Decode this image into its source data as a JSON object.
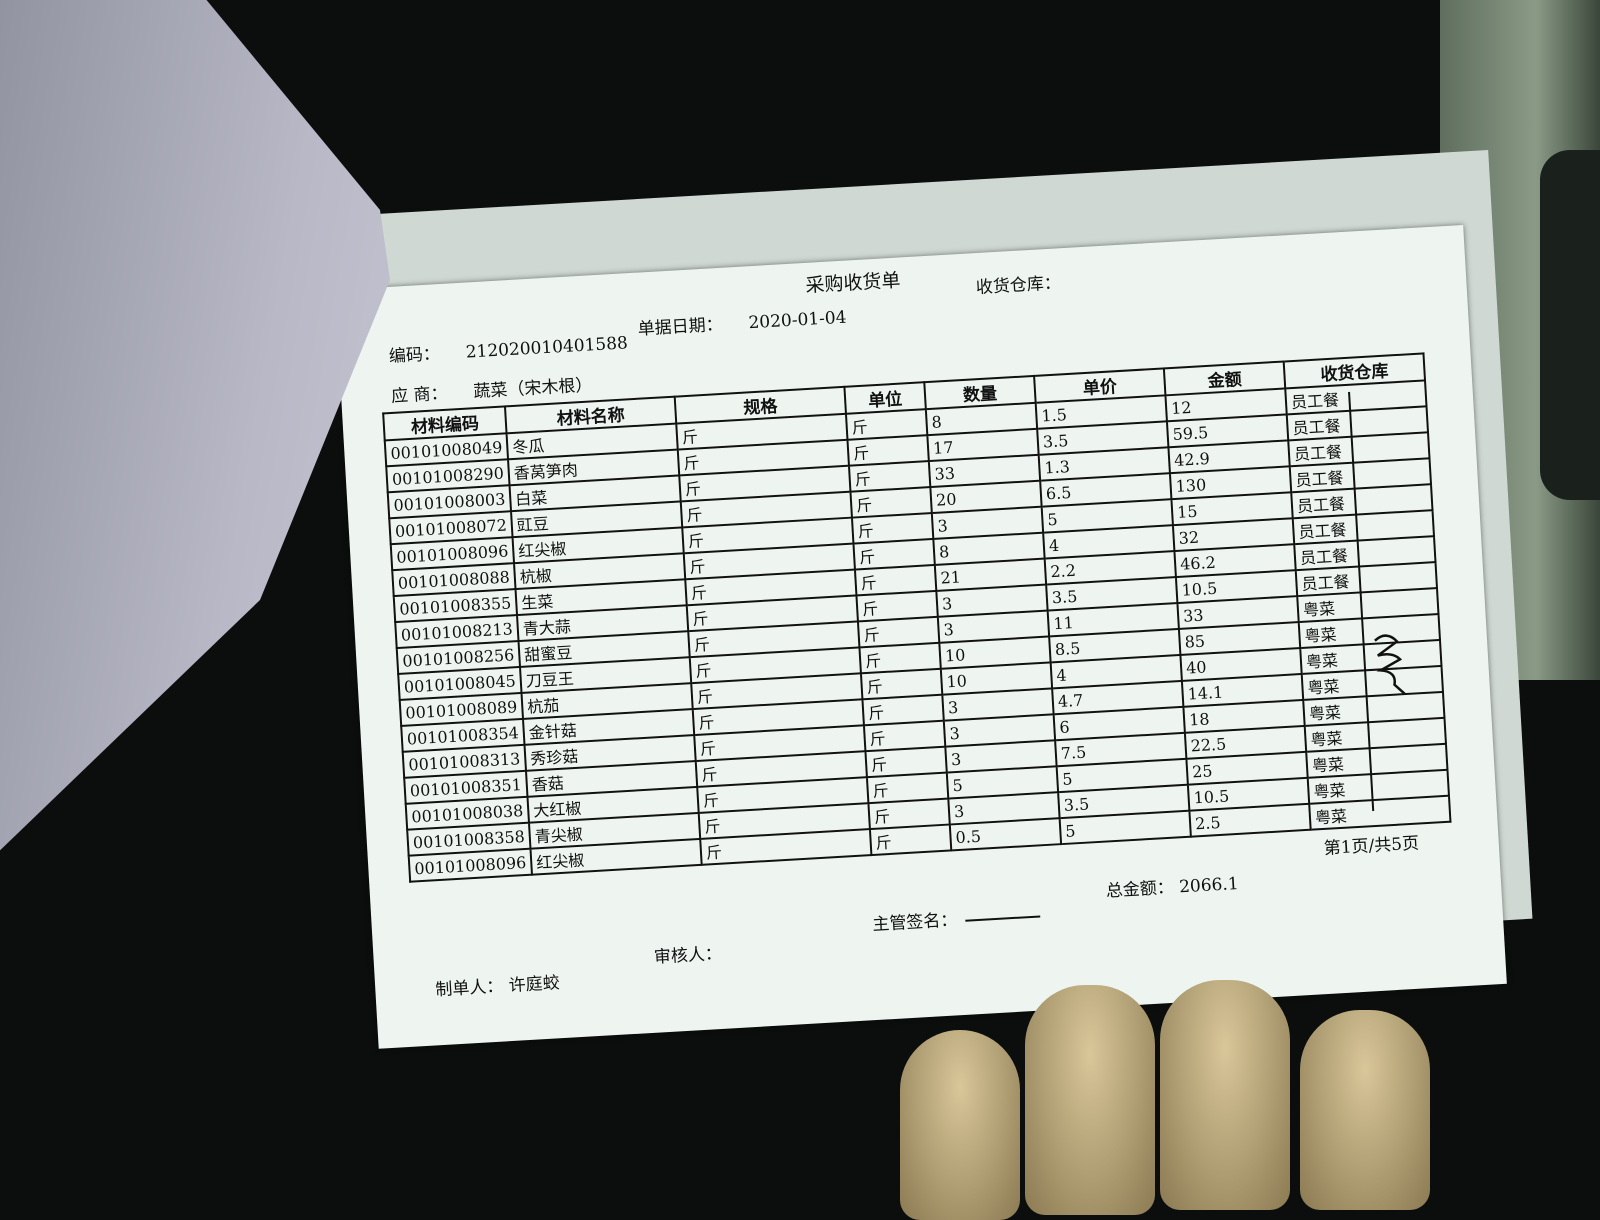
{
  "document": {
    "title": "采购收货单",
    "warehouse_label": "收货仓库：",
    "code_label": "编码：",
    "code_value": "212020010401588",
    "date_label": "单据日期：",
    "date_value": "2020-01-04",
    "supplier_label": "应 商：",
    "supplier_value": "蔬菜（宋木根）",
    "columns": [
      "材料编码",
      "材料名称",
      "规格",
      "单位",
      "数量",
      "单价",
      "金额",
      "收货仓库"
    ],
    "rows": [
      [
        "00101008049",
        "冬瓜",
        "斤",
        "斤",
        "8",
        "1.5",
        "12",
        "员工餐"
      ],
      [
        "00101008290",
        "香莴笋肉",
        "斤",
        "斤",
        "17",
        "3.5",
        "59.5",
        "员工餐"
      ],
      [
        "00101008003",
        "白菜",
        "斤",
        "斤",
        "33",
        "1.3",
        "42.9",
        "员工餐"
      ],
      [
        "00101008072",
        "豇豆",
        "斤",
        "斤",
        "20",
        "6.5",
        "130",
        "员工餐"
      ],
      [
        "00101008096",
        "红尖椒",
        "斤",
        "斤",
        "3",
        "5",
        "15",
        "员工餐"
      ],
      [
        "00101008088",
        "杭椒",
        "斤",
        "斤",
        "8",
        "4",
        "32",
        "员工餐"
      ],
      [
        "00101008355",
        "生菜",
        "斤",
        "斤",
        "21",
        "2.2",
        "46.2",
        "员工餐"
      ],
      [
        "00101008213",
        "青大蒜",
        "斤",
        "斤",
        "3",
        "3.5",
        "10.5",
        "员工餐"
      ],
      [
        "00101008256",
        "甜蜜豆",
        "斤",
        "斤",
        "3",
        "11",
        "33",
        "粤菜"
      ],
      [
        "00101008045",
        "刀豆王",
        "斤",
        "斤",
        "10",
        "8.5",
        "85",
        "粤菜"
      ],
      [
        "00101008089",
        "杭茄",
        "斤",
        "斤",
        "10",
        "4",
        "40",
        "粤菜"
      ],
      [
        "00101008354",
        "金针菇",
        "斤",
        "斤",
        "3",
        "4.7",
        "14.1",
        "粤菜"
      ],
      [
        "00101008313",
        "秀珍菇",
        "斤",
        "斤",
        "3",
        "6",
        "18",
        "粤菜"
      ],
      [
        "00101008351",
        "香菇",
        "斤",
        "斤",
        "3",
        "7.5",
        "22.5",
        "粤菜"
      ],
      [
        "00101008038",
        "大红椒",
        "斤",
        "斤",
        "5",
        "5",
        "25",
        "粤菜"
      ],
      [
        "00101008358",
        "青尖椒",
        "斤",
        "斤",
        "3",
        "3.5",
        "10.5",
        "粤菜"
      ],
      [
        "00101008096",
        "红尖椒",
        "斤",
        "斤",
        "0.5",
        "5",
        "2.5",
        "粤菜"
      ]
    ],
    "supervisor_label": "主管签名：",
    "total_label": "总金额：",
    "total_value": "2066.1",
    "page_info": "第1页/共5页",
    "maker_label": "制单人：",
    "maker_value": "许庭蛟",
    "reviewer_label": "审核人："
  },
  "colors": {
    "paper": "#eef5f0",
    "ink": "#111111",
    "background": "#0c0e0d"
  }
}
